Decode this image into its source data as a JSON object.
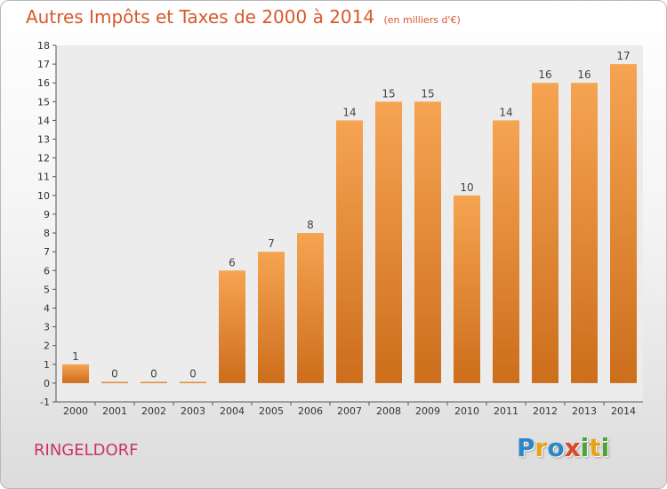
{
  "chart_data": {
    "type": "bar",
    "title": "Autres Impôts et Taxes de 2000 à 2014",
    "subtitle": "(en milliers d'€)",
    "categories": [
      "2000",
      "2001",
      "2002",
      "2003",
      "2004",
      "2005",
      "2006",
      "2007",
      "2008",
      "2009",
      "2010",
      "2011",
      "2012",
      "2013",
      "2014"
    ],
    "values": [
      1,
      0,
      0,
      0,
      6,
      7,
      8,
      14,
      15,
      15,
      10,
      14,
      16,
      16,
      17
    ],
    "data_labels": [
      "1",
      "0",
      "0",
      "0",
      "6",
      "7",
      "8",
      "14",
      "15",
      "15",
      "10",
      "14",
      "16",
      "16",
      "17"
    ],
    "ylim": [
      -1,
      18
    ],
    "y_ticks": [
      "-1",
      "0",
      "1",
      "2",
      "3",
      "4",
      "5",
      "6",
      "7",
      "8",
      "9",
      "10",
      "11",
      "12",
      "13",
      "14",
      "15",
      "16",
      "17",
      "18"
    ],
    "grid": false,
    "bar_color": "#f2913e"
  },
  "footer": {
    "location": "RINGELDORF",
    "brand_letters": [
      {
        "ch": "P",
        "color": "#2f86c7"
      },
      {
        "ch": "r",
        "color": "#e8a21a"
      },
      {
        "ch": "o",
        "color": "#2f86c7"
      },
      {
        "ch": "x",
        "color": "#d64a2a"
      },
      {
        "ch": "i",
        "color": "#4da33a"
      },
      {
        "ch": "t",
        "color": "#e8a21a"
      },
      {
        "ch": "i",
        "color": "#4da33a"
      }
    ]
  }
}
